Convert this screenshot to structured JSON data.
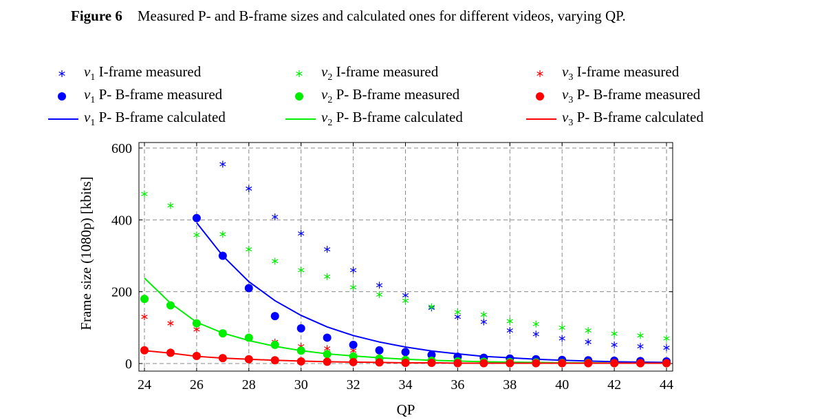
{
  "caption": {
    "label": "Figure 6",
    "text": "Measured P- and B-frame sizes and calculated ones for different videos, varying QP."
  },
  "legend": [
    {
      "var": "v",
      "sub": "1",
      "text": "I-frame measured",
      "marker": "star",
      "color": "#0000ff"
    },
    {
      "var": "v",
      "sub": "2",
      "text": "I-frame measured",
      "marker": "star",
      "color": "#00ee00"
    },
    {
      "var": "v",
      "sub": "3",
      "text": "I-frame measured",
      "marker": "star",
      "color": "#ff0000"
    },
    {
      "var": "v",
      "sub": "1",
      "text": "P- B-frame measured",
      "marker": "dot",
      "color": "#0000ff"
    },
    {
      "var": "v",
      "sub": "2",
      "text": "P- B-frame measured",
      "marker": "dot",
      "color": "#00ee00"
    },
    {
      "var": "v",
      "sub": "3",
      "text": "P- B-frame measured",
      "marker": "dot",
      "color": "#ff0000"
    },
    {
      "var": "v",
      "sub": "1",
      "text": "P- B-frame calculated",
      "marker": "line",
      "color": "#0000ff"
    },
    {
      "var": "v",
      "sub": "2",
      "text": "P- B-frame calculated",
      "marker": "line",
      "color": "#00ee00"
    },
    {
      "var": "v",
      "sub": "3",
      "text": "P- B-frame calculated",
      "marker": "line",
      "color": "#ff0000"
    }
  ],
  "chart_data": {
    "type": "scatter",
    "xlabel": "QP",
    "ylabel": "Frame size (1080p) [kbits]",
    "xlim": [
      24,
      44
    ],
    "ylim": [
      0,
      600
    ],
    "xticks": [
      "24",
      "26",
      "28",
      "30",
      "32",
      "34",
      "36",
      "38",
      "40",
      "42",
      "44"
    ],
    "yticks": [
      "0",
      "200",
      "400",
      "600"
    ],
    "grid": "dashed",
    "series": [
      {
        "name": "v1 I-frame measured",
        "kind": "star",
        "color": "#0000ff",
        "x": [
          27,
          28,
          29,
          30,
          31,
          32,
          33,
          34,
          35,
          36,
          37,
          38,
          39,
          40,
          41,
          42,
          43,
          44
        ],
        "y": [
          555,
          487,
          408,
          362,
          318,
          260,
          218,
          190,
          155,
          130,
          116,
          92,
          82,
          70,
          60,
          52,
          48,
          44
        ]
      },
      {
        "name": "v2 I-frame measured",
        "kind": "star",
        "color": "#00ee00",
        "x": [
          24,
          25,
          26,
          27,
          28,
          29,
          30,
          31,
          32,
          33,
          34,
          35,
          36,
          37,
          38,
          39,
          40,
          41,
          42,
          43,
          44
        ],
        "y": [
          472,
          440,
          358,
          360,
          318,
          285,
          260,
          242,
          212,
          192,
          175,
          158,
          143,
          136,
          118,
          110,
          100,
          92,
          83,
          78,
          70
        ]
      },
      {
        "name": "v3 I-frame measured",
        "kind": "star",
        "color": "#ff0000",
        "x": [
          24,
          25,
          26,
          29,
          30,
          31,
          32
        ],
        "y": [
          130,
          112,
          95,
          60,
          48,
          42,
          36
        ]
      },
      {
        "name": "v1 P- B-frame measured",
        "kind": "dot",
        "color": "#0000ff",
        "x": [
          26,
          27,
          28,
          29,
          30,
          31,
          32,
          33,
          34,
          35,
          36,
          37,
          38,
          39,
          40,
          41,
          42,
          43,
          44
        ],
        "y": [
          405,
          300,
          210,
          132,
          98,
          72,
          52,
          37,
          32,
          24,
          19,
          16,
          14,
          12,
          10,
          9,
          8,
          7,
          6
        ]
      },
      {
        "name": "v2 P- B-frame measured",
        "kind": "dot",
        "color": "#00ee00",
        "x": [
          24,
          25,
          26,
          27,
          28,
          29,
          30,
          31,
          32,
          33,
          34,
          35,
          36,
          37,
          38,
          39,
          40,
          41,
          42,
          43,
          44
        ],
        "y": [
          180,
          162,
          112,
          84,
          72,
          52,
          36,
          26,
          20,
          14,
          10,
          8,
          6,
          5,
          4,
          3,
          2,
          2,
          1,
          1,
          1
        ]
      },
      {
        "name": "v3 P- B-frame measured",
        "kind": "dot",
        "color": "#ff0000",
        "x": [
          24,
          25,
          26,
          27,
          28,
          29,
          30,
          31,
          32,
          33,
          34,
          35,
          36,
          37,
          38,
          39,
          40,
          41,
          42,
          43,
          44
        ],
        "y": [
          37,
          30,
          21,
          15,
          12,
          9,
          6,
          5,
          4,
          3,
          2,
          2,
          1,
          1,
          1,
          1,
          1,
          1,
          1,
          1,
          1
        ]
      },
      {
        "name": "v1 P- B-frame calculated",
        "kind": "line",
        "color": "#0000ff",
        "x": [
          26,
          27,
          28,
          29,
          30,
          31,
          32,
          33,
          34,
          35,
          36,
          37,
          38,
          39,
          40,
          41,
          42,
          43,
          44
        ],
        "y": [
          392,
          300,
          228,
          175,
          134,
          102,
          78,
          60,
          46,
          35,
          27,
          20,
          16,
          12,
          9,
          7,
          5,
          4,
          3
        ]
      },
      {
        "name": "v2 P- B-frame calculated",
        "kind": "line",
        "color": "#00ee00",
        "x": [
          24,
          25,
          26,
          27,
          28,
          29,
          30,
          31,
          32,
          33,
          34,
          35,
          36,
          37,
          38,
          39,
          40,
          41,
          42,
          43,
          44
        ],
        "y": [
          238,
          168,
          115,
          85,
          64,
          48,
          36,
          27,
          21,
          16,
          12,
          9,
          7,
          5,
          4,
          3,
          2,
          2,
          1,
          1,
          1
        ]
      },
      {
        "name": "v3 P- B-frame calculated",
        "kind": "line",
        "color": "#ff0000",
        "x": [
          24,
          25,
          26,
          27,
          28,
          29,
          30,
          31,
          32,
          33,
          34,
          35,
          36,
          37,
          38,
          39,
          40,
          41,
          42,
          43,
          44
        ],
        "y": [
          36,
          29,
          20,
          15,
          12,
          9,
          7,
          5,
          4,
          3,
          2,
          2,
          1,
          1,
          1,
          1,
          1,
          1,
          1,
          1,
          1
        ]
      }
    ]
  }
}
